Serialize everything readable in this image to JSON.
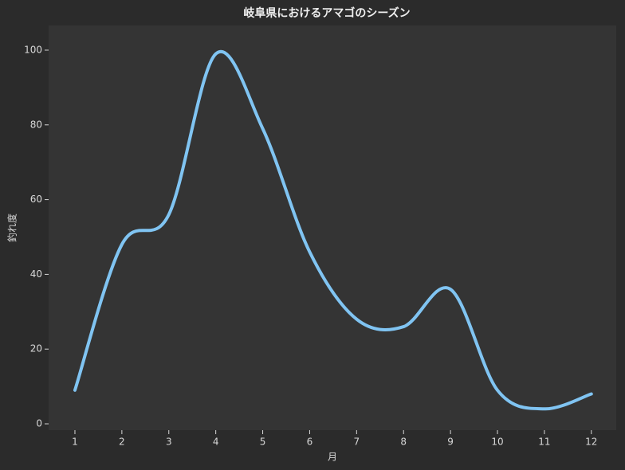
{
  "chart_data": {
    "type": "line",
    "title": "岐阜県におけるアマゴのシーズン",
    "x_label": "月",
    "y_label": "釣れ度",
    "x": [
      1,
      2,
      3,
      4,
      5,
      6,
      7,
      8,
      9,
      10,
      11,
      12
    ],
    "series": [
      {
        "color": "#80c4f2",
        "values": [
          9,
          48,
          56,
          99,
          79,
          46,
          28,
          26,
          36,
          9,
          4,
          8
        ]
      }
    ],
    "smooth": true,
    "xlim": [
      0.44,
      12.53
    ],
    "xticks": [
      1,
      2,
      3,
      4,
      5,
      6,
      7,
      8,
      9,
      10,
      11,
      12
    ],
    "ylim": [
      -1.7,
      106.6
    ],
    "yticks": [
      0,
      20,
      40,
      60,
      80,
      100
    ]
  }
}
